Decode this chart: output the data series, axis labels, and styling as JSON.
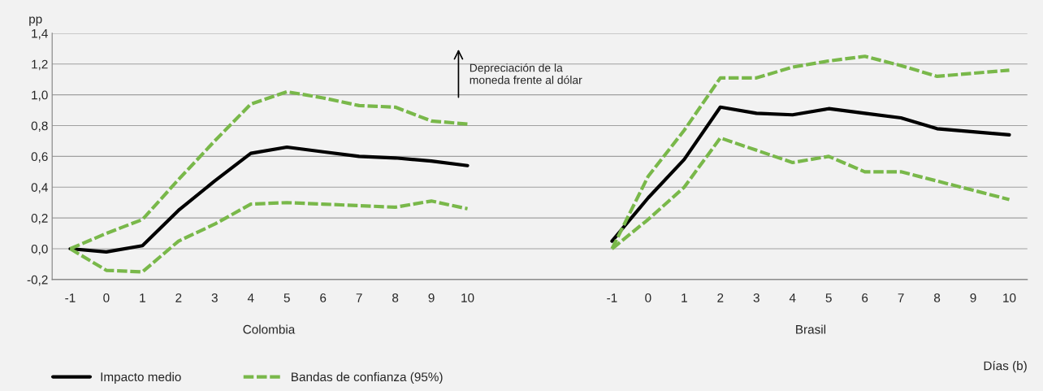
{
  "chart_data": {
    "type": "line",
    "ylabel": "pp",
    "xlabel": "Días (b)",
    "categories": [
      "-1",
      "0",
      "1",
      "2",
      "3",
      "4",
      "5",
      "6",
      "7",
      "8",
      "9",
      "10",
      null,
      null,
      null,
      "-1",
      "0",
      "1",
      "2",
      "3",
      "4",
      "5",
      "6",
      "7",
      "8",
      "9",
      "10"
    ],
    "ylim": [
      -0.2,
      1.4
    ],
    "yticks": [
      {
        "value": -0.2,
        "label": "-0,2"
      },
      {
        "value": 0,
        "label": "0,0"
      },
      {
        "value": 0.2,
        "label": "0,2"
      },
      {
        "value": 0.4,
        "label": "0,4"
      },
      {
        "value": 0.6,
        "label": "0,6"
      },
      {
        "value": 0.8,
        "label": "0,8"
      },
      {
        "value": 1.0,
        "label": "1,0"
      },
      {
        "value": 1.2,
        "label": "1,2"
      },
      {
        "value": 1.4,
        "label": "1,4"
      }
    ],
    "grid": "y",
    "legend": "bottom left",
    "marker": "none",
    "series": [
      {
        "name": "Impacto medio",
        "color": "#000000",
        "line_style": "solid",
        "values": [
          0.0,
          -0.02,
          0.02,
          0.25,
          0.44,
          0.62,
          0.66,
          0.63,
          0.6,
          0.59,
          0.57,
          0.54,
          null,
          null,
          null,
          0.05,
          0.33,
          0.58,
          0.92,
          0.88,
          0.87,
          0.91,
          0.88,
          0.85,
          0.78,
          0.76,
          0.74
        ]
      },
      {
        "name": "Bandas de confianza (95%)",
        "color": "#79b84a",
        "line_style": "dashed",
        "values": [
          0.0,
          0.1,
          0.19,
          0.45,
          0.7,
          0.94,
          1.02,
          0.98,
          0.93,
          0.92,
          0.83,
          0.81,
          null,
          null,
          null,
          0.0,
          0.47,
          0.77,
          1.11,
          1.11,
          1.18,
          1.22,
          1.25,
          1.19,
          1.12,
          1.14,
          1.16
        ]
      },
      {
        "color": "#79b84a",
        "line_style": "dashed",
        "values": [
          0.0,
          -0.14,
          -0.15,
          0.05,
          0.16,
          0.29,
          0.3,
          0.29,
          0.28,
          0.27,
          0.31,
          0.26,
          null,
          null,
          null,
          0.0,
          0.19,
          0.4,
          0.72,
          0.64,
          0.56,
          0.6,
          0.5,
          0.5,
          0.44,
          0.38,
          0.32
        ]
      }
    ],
    "annotations": [
      "Colombia",
      "Brasil",
      "Depreciación de la moneda frente al dólar"
    ]
  }
}
